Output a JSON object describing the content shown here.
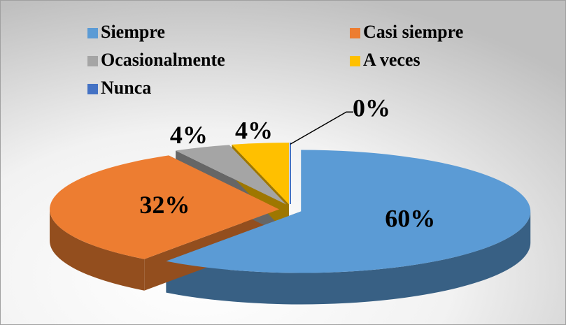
{
  "chart_data": {
    "type": "pie3d",
    "categories": [
      "Siempre",
      "Casi siempre",
      "Ocasionalmente",
      "A veces",
      "Nunca"
    ],
    "values": [
      60,
      32,
      4,
      4,
      0
    ],
    "value_labels": [
      "60%",
      "32%",
      "4%",
      "4%",
      "0%"
    ],
    "colors": [
      "#5b9bd5",
      "#ed7d31",
      "#a5a5a5",
      "#ffc000",
      "#4472c4"
    ],
    "legend": "top"
  }
}
